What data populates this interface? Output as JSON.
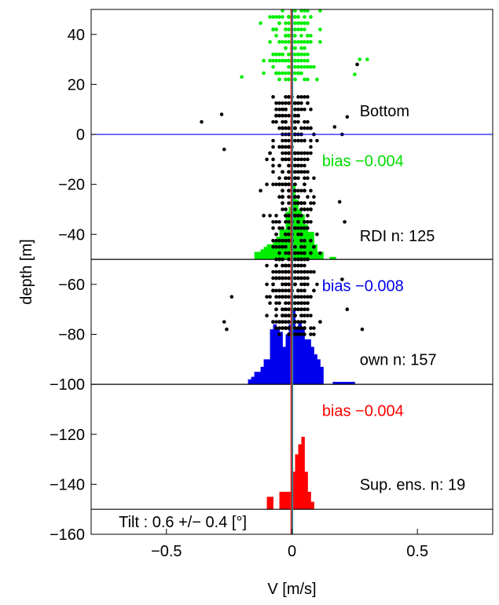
{
  "chart_data": {
    "type": "scatter",
    "xlabel": "V [m/s]",
    "ylabel": "depth [m]",
    "xlim": [
      -0.8,
      0.8
    ],
    "ylim": [
      -160,
      50
    ],
    "xticks": [
      -0.5,
      0,
      0.5
    ],
    "xtick_labels": [
      "−0.5",
      "0",
      "0.5"
    ],
    "yticks": [
      40,
      20,
      0,
      -20,
      -40,
      -60,
      -80,
      -100,
      -120,
      -140,
      -160
    ],
    "ytick_labels": [
      "40",
      "20",
      "0",
      "−20",
      "−40",
      "−60",
      "−80",
      "−100",
      "−120",
      "−140",
      "−160"
    ],
    "grid": false,
    "colors": {
      "green": "#00ee00",
      "black": "#000000",
      "blue": "#0000ee",
      "red": "#ff0000",
      "zero_line": "#1a1aff",
      "center_red": "#ff3333",
      "center_teal": "#3aa0b0"
    },
    "horizontal_lines": [
      {
        "y": 0,
        "color": "#0000ee"
      },
      {
        "y": -50,
        "color": "#000000"
      },
      {
        "y": -100,
        "color": "#000000"
      },
      {
        "y": -150,
        "color": "#000000"
      }
    ],
    "annotations": [
      {
        "text": "Bottom",
        "x": 0.27,
        "y": 9.5,
        "color": "#000000"
      },
      {
        "text": "bias −0.004",
        "x": 0.12,
        "y": -10.5,
        "color": "#00dd00"
      },
      {
        "text": "RDI n: 125",
        "x": 0.27,
        "y": -40.5,
        "color": "#000000"
      },
      {
        "text": "bias −0.008",
        "x": 0.12,
        "y": -60.5,
        "color": "#0000ee"
      },
      {
        "text": "own n: 157",
        "x": 0.27,
        "y": -90,
        "color": "#000000"
      },
      {
        "text": "bias −0.004",
        "x": 0.12,
        "y": -110.5,
        "color": "#ff0000"
      },
      {
        "text": "Sup. ens. n: 19",
        "x": 0.27,
        "y": -140,
        "color": "#000000"
      },
      {
        "text": "Tilt : 0.6 +/− 0.4 [°]",
        "x": -0.69,
        "y": -155,
        "color": "#000000"
      }
    ],
    "histograms": [
      {
        "name": "",
        "color": "#00ee00",
        "baseline": -50,
        "bin_width": 0.0125,
        "bins": [
          [
            -0.15,
            -47
          ],
          [
            -0.1375,
            -47
          ],
          [
            -0.125,
            -46
          ],
          [
            -0.1125,
            -45
          ],
          [
            -0.1,
            -44
          ],
          [
            -0.0875,
            -44
          ],
          [
            -0.075,
            -43
          ],
          [
            -0.0625,
            -41
          ],
          [
            -0.05,
            -38
          ],
          [
            -0.0375,
            -38
          ],
          [
            -0.025,
            -31
          ],
          [
            -0.0125,
            -29
          ],
          [
            0,
            -20
          ],
          [
            0.0125,
            -26
          ],
          [
            0.025,
            -30
          ],
          [
            0.0375,
            -32
          ],
          [
            0.05,
            -36
          ],
          [
            0.0625,
            -39
          ],
          [
            0.075,
            -39
          ],
          [
            0.0875,
            -44
          ],
          [
            0.1,
            -47
          ],
          [
            0.1125,
            -47
          ],
          [
            0.15,
            -49
          ],
          [
            0.1625,
            -49
          ]
        ]
      },
      {
        "name": "",
        "color": "#0000ee",
        "baseline": -100,
        "bin_width": 0.0125,
        "bins": [
          [
            -0.175,
            -98
          ],
          [
            -0.1625,
            -97
          ],
          [
            -0.15,
            -95
          ],
          [
            -0.1375,
            -95
          ],
          [
            -0.125,
            -93
          ],
          [
            -0.1125,
            -90
          ],
          [
            -0.1,
            -90
          ],
          [
            -0.0875,
            -78
          ],
          [
            -0.075,
            -76
          ],
          [
            -0.0625,
            -78
          ],
          [
            -0.05,
            -79
          ],
          [
            -0.0375,
            -85
          ],
          [
            -0.025,
            -80
          ],
          [
            -0.0125,
            -76
          ],
          [
            0,
            -70
          ],
          [
            0.0125,
            -77
          ],
          [
            0.025,
            -75
          ],
          [
            0.0375,
            -77
          ],
          [
            0.05,
            -82
          ],
          [
            0.0625,
            -82
          ],
          [
            0.075,
            -85
          ],
          [
            0.0875,
            -88
          ],
          [
            0.1,
            -90
          ],
          [
            0.1125,
            -93
          ],
          [
            0.1625,
            -99
          ],
          [
            0.175,
            -99
          ],
          [
            0.1875,
            -99
          ],
          [
            0.2,
            -99
          ],
          [
            0.2125,
            -99
          ],
          [
            0.225,
            -99
          ],
          [
            0.2375,
            -99
          ]
        ]
      },
      {
        "name": "",
        "color": "#ff0000",
        "baseline": -150,
        "bin_width": 0.0125,
        "bins": [
          [
            -0.1,
            -145
          ],
          [
            -0.0875,
            -145
          ],
          [
            -0.05,
            -143
          ],
          [
            -0.0375,
            -143
          ],
          [
            -0.025,
            -143
          ],
          [
            -0.0125,
            -143
          ],
          [
            0,
            -135
          ],
          [
            0.0125,
            -128
          ],
          [
            0.025,
            -124
          ],
          [
            0.0375,
            -121
          ],
          [
            0.05,
            -135
          ],
          [
            0.0625,
            -143
          ],
          [
            0.075,
            -147
          ]
        ]
      }
    ],
    "center_lines": [
      {
        "x": -0.004,
        "color": "#ff3333"
      },
      {
        "x": 0.003,
        "color": "#3aa0b0"
      },
      {
        "x": 0.0,
        "color": "#444444"
      }
    ],
    "scatter_series": [
      {
        "name": "",
        "color": "#00ee00",
        "y_range": [
          22,
          50
        ],
        "x_spread": 0.095,
        "x_center": 0.0,
        "count": 190,
        "extra_points": [
          [
            0.27,
            30
          ],
          [
            0.3,
            30
          ],
          [
            -0.2,
            23
          ],
          [
            0.25,
            24
          ]
        ]
      },
      {
        "name": "",
        "color": "#000000",
        "y_range": [
          -50,
          15
        ],
        "x_spread": 0.085,
        "x_center": 0.0,
        "count": 430,
        "extra_points": [
          [
            -0.36,
            5
          ],
          [
            -0.28,
            8
          ],
          [
            0.22,
            7
          ],
          [
            0.2,
            0
          ],
          [
            0.21,
            -35
          ],
          [
            0.26,
            28
          ],
          [
            0.19,
            -27
          ],
          [
            -0.27,
            -6
          ],
          [
            0.17,
            3
          ]
        ]
      },
      {
        "name": "",
        "color": "#000000",
        "y_range": [
          -80,
          -50
        ],
        "x_spread": 0.08,
        "x_center": 0.0,
        "count": 300,
        "extra_points": [
          [
            -0.27,
            -75
          ],
          [
            -0.26,
            -78
          ],
          [
            0.28,
            -78
          ],
          [
            0.22,
            -70
          ],
          [
            -0.24,
            -65
          ],
          [
            0.2,
            -58
          ]
        ]
      }
    ]
  }
}
